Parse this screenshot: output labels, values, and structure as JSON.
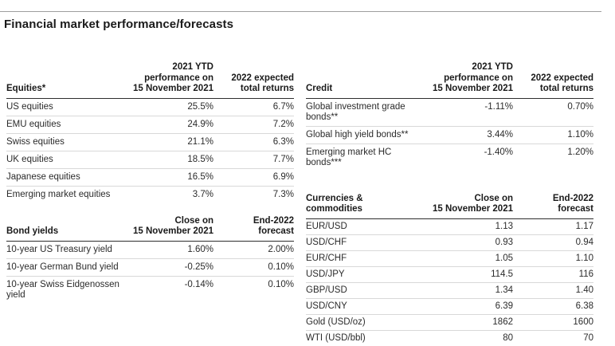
{
  "page": {
    "title": "Financial market performance/forecasts"
  },
  "colors": {
    "top_rule": "#9e9e9e",
    "header_rule": "#2e2e2e",
    "row_divider": "#d8d8d8",
    "text": "#2b2b2b"
  },
  "tables": [
    {
      "id": "equities",
      "title_lines": [
        "Equities*"
      ],
      "col1_lines": [
        "2021 YTD",
        "performance on",
        "15 November 2021"
      ],
      "col2_lines": [
        "2022 expected",
        "total returns"
      ],
      "rows": [
        {
          "label": "US equities",
          "col1": "25.5%",
          "col2": "6.7%"
        },
        {
          "label": "EMU equities",
          "col1": "24.9%",
          "col2": "7.2%"
        },
        {
          "label": "Swiss equities",
          "col1": "21.1%",
          "col2": "6.3%"
        },
        {
          "label": "UK equities",
          "col1": "18.5%",
          "col2": "7.7%"
        },
        {
          "label": "Japanese equities",
          "col1": "16.5%",
          "col2": "6.9%"
        },
        {
          "label": "Emerging market equities",
          "col1": "3.7%",
          "col2": "7.3%"
        }
      ]
    },
    {
      "id": "bond-yields",
      "title_lines": [
        "Bond yields"
      ],
      "col1_lines": [
        "Close on",
        "15 November 2021"
      ],
      "col2_lines": [
        "End-2022",
        "forecast"
      ],
      "rows": [
        {
          "label": "10-year US Treasury yield",
          "col1": "1.60%",
          "col2": "2.00%"
        },
        {
          "label": "10-year German Bund yield",
          "col1": "-0.25%",
          "col2": "0.10%"
        },
        {
          "label": "10-year Swiss Eidgenossen yield",
          "col1": "-0.14%",
          "col2": "0.10%"
        }
      ]
    },
    {
      "id": "credit",
      "title_lines": [
        "Credit"
      ],
      "col1_lines": [
        "2021 YTD",
        "performance on",
        "15 November 2021"
      ],
      "col2_lines": [
        "2022 expected",
        "total returns"
      ],
      "rows": [
        {
          "label": "Global investment grade bonds**",
          "col1": "-1.11%",
          "col2": "0.70%"
        },
        {
          "label": "Global high yield bonds**",
          "col1": "3.44%",
          "col2": "1.10%"
        },
        {
          "label": "Emerging market HC bonds***",
          "col1": "-1.40%",
          "col2": "1.20%"
        }
      ]
    },
    {
      "id": "currencies-commodities",
      "title_lines": [
        "Currencies &",
        "commodities"
      ],
      "col1_lines": [
        "Close on",
        "15 November 2021"
      ],
      "col2_lines": [
        "End-2022",
        "forecast"
      ],
      "rows": [
        {
          "label": "EUR/USD",
          "col1": "1.13",
          "col2": "1.17"
        },
        {
          "label": "USD/CHF",
          "col1": "0.93",
          "col2": "0.94"
        },
        {
          "label": "EUR/CHF",
          "col1": "1.05",
          "col2": "1.10"
        },
        {
          "label": "USD/JPY",
          "col1": "114.5",
          "col2": "116"
        },
        {
          "label": "GBP/USD",
          "col1": "1.34",
          "col2": "1.40"
        },
        {
          "label": "USD/CNY",
          "col1": "6.39",
          "col2": "6.38"
        },
        {
          "label": "Gold (USD/oz)",
          "col1": "1862",
          "col2": "1600"
        },
        {
          "label": "WTI (USD/bbl)",
          "col1": "80",
          "col2": "70"
        }
      ]
    }
  ]
}
